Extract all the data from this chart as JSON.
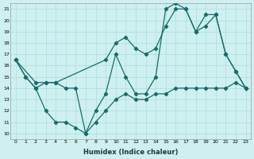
{
  "xlabel": "Humidex (Indice chaleur)",
  "ylabel": "",
  "xlim": [
    -0.5,
    23.5
  ],
  "ylim": [
    9.5,
    21.5
  ],
  "yticks": [
    10,
    11,
    12,
    13,
    14,
    15,
    16,
    17,
    18,
    19,
    20,
    21
  ],
  "xticks": [
    0,
    1,
    2,
    3,
    4,
    5,
    6,
    7,
    8,
    9,
    10,
    11,
    12,
    13,
    14,
    15,
    16,
    17,
    18,
    19,
    20,
    21,
    22,
    23
  ],
  "line_color": "#1a6b6b",
  "marker": "D",
  "markersize": 2.2,
  "linewidth": 0.9,
  "background_color": "#cff0f0",
  "grid_color": "#aadddd",
  "line1_x": [
    0,
    1,
    2,
    3,
    4,
    5,
    6,
    7,
    8,
    9,
    10,
    11,
    12,
    13,
    14,
    15,
    16,
    17,
    18,
    19,
    20,
    21,
    22,
    23
  ],
  "line1_y": [
    16.5,
    15.0,
    14.0,
    12.0,
    11.0,
    11.0,
    10.5,
    10.0,
    11.0,
    12.0,
    13.0,
    13.5,
    13.0,
    13.0,
    13.5,
    13.5,
    14.0,
    14.0,
    14.0,
    14.0,
    14.0,
    14.0,
    14.5,
    14.0
  ],
  "line2_x": [
    0,
    2,
    3,
    4,
    9,
    10,
    11,
    12,
    13,
    14,
    15,
    16,
    17,
    18,
    19,
    20,
    21,
    22,
    23
  ],
  "line2_y": [
    16.5,
    14.5,
    14.5,
    14.5,
    16.5,
    18.0,
    18.5,
    17.5,
    17.0,
    17.5,
    19.5,
    21.0,
    21.0,
    19.0,
    20.5,
    20.5,
    17.0,
    15.5,
    14.0
  ],
  "line3_x": [
    0,
    1,
    2,
    3,
    4,
    5,
    6,
    7,
    8,
    9,
    10,
    11,
    12,
    13,
    14,
    15,
    16,
    17,
    18,
    19,
    20,
    21,
    22,
    23
  ],
  "line3_y": [
    16.5,
    15.0,
    14.0,
    14.5,
    14.5,
    14.0,
    14.0,
    10.0,
    12.0,
    13.5,
    17.0,
    15.0,
    13.5,
    13.5,
    15.0,
    21.0,
    21.5,
    21.0,
    19.0,
    19.5,
    20.5,
    17.0,
    15.5,
    14.0
  ]
}
